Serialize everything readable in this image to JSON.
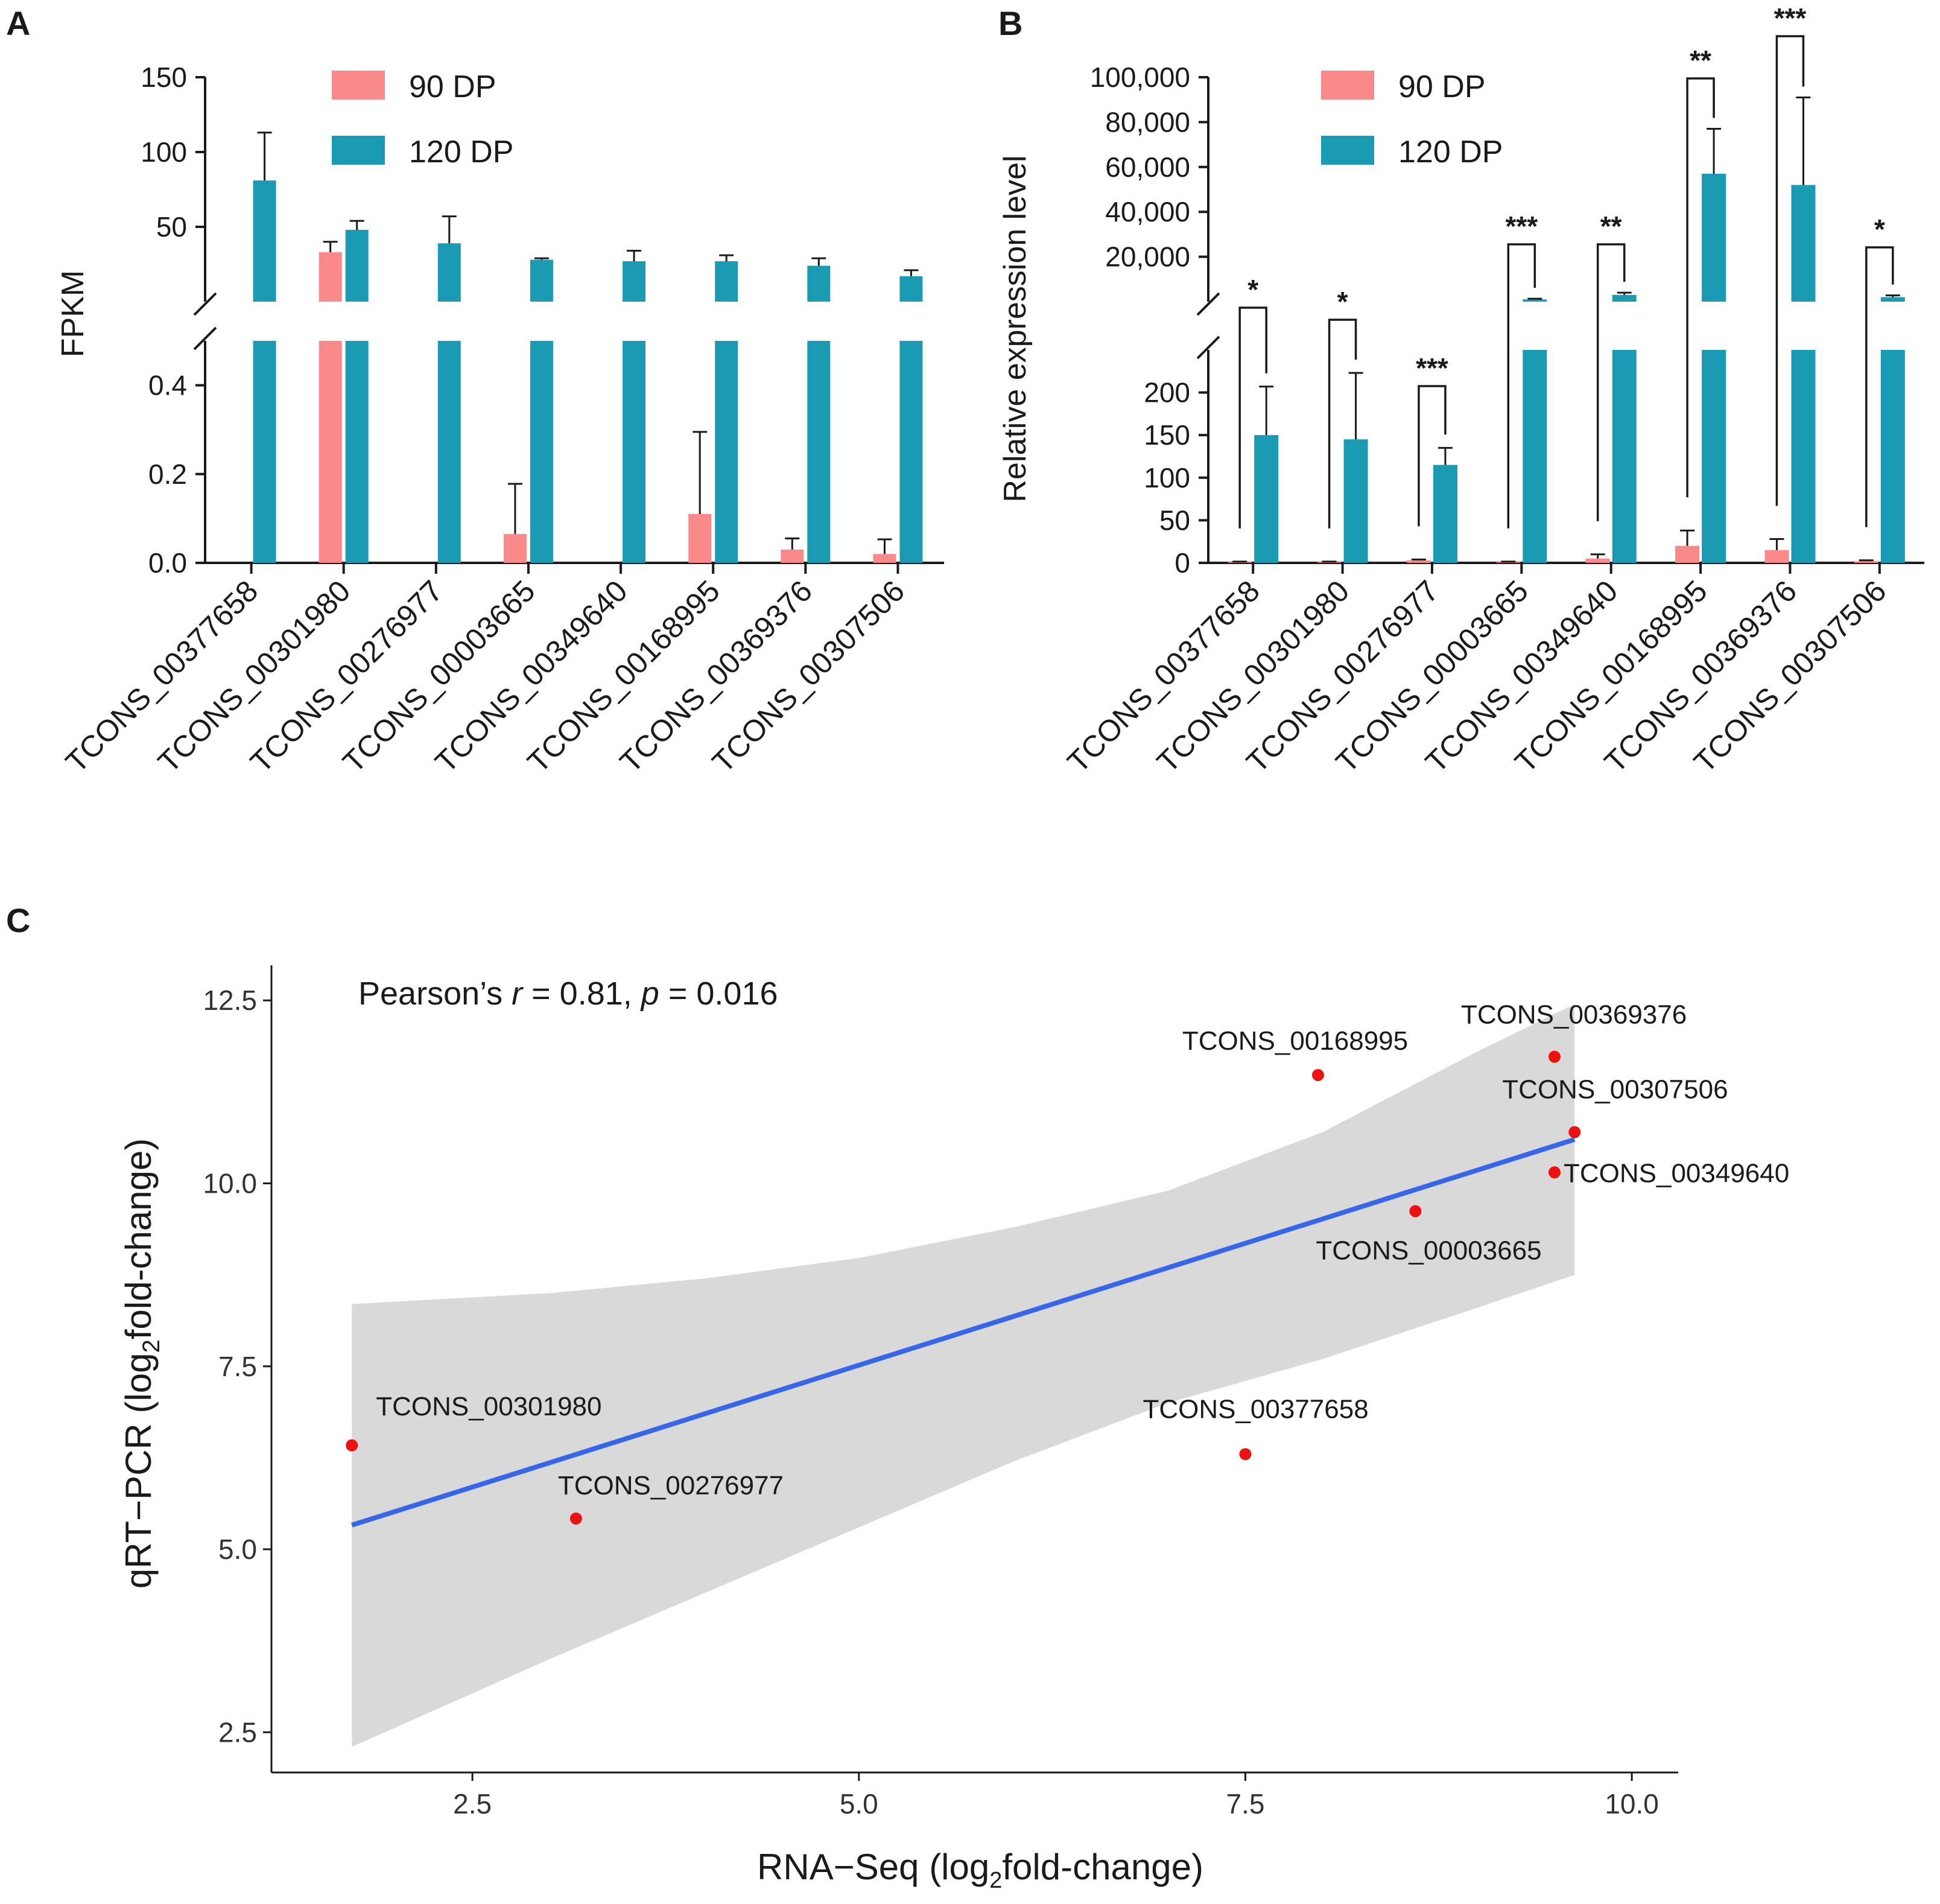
{
  "colors": {
    "dp90": "#fa8a8a",
    "dp120": "#1b9bb3",
    "fit_line": "#3766e8",
    "ci_band": "#d9d9d9",
    "points": "#ee1111",
    "axis": "#1a1a1a"
  },
  "chart_data": [
    {
      "panel": "A",
      "type": "bar",
      "ylabel": "FPKM",
      "y_axis_break": true,
      "lower_ticks": [
        "0.0",
        "0.2",
        "0.4"
      ],
      "upper_ticks": [
        "50",
        "100",
        "150"
      ],
      "lower_ylim": [
        0,
        0.5
      ],
      "upper_ylim": [
        0,
        150
      ],
      "legend": [
        "90 DP",
        "120 DP"
      ],
      "categories": [
        "TCONS_00377658",
        "TCONS_00301980",
        "TCONS_00276977",
        "TCONS_00003665",
        "TCONS_00349640",
        "TCONS_00168995",
        "TCONS_00369376",
        "TCONS_00307506"
      ],
      "series": [
        {
          "name": "90 DP",
          "values": [
            0,
            33,
            0,
            0.065,
            0,
            0.11,
            0.03,
            0.02
          ],
          "errors": [
            0,
            7,
            0,
            0.113,
            0,
            0.185,
            0.025,
            0.033
          ]
        },
        {
          "name": "120 DP",
          "values": [
            81,
            48,
            39,
            28,
            27,
            27,
            24,
            17
          ],
          "errors": [
            32,
            6,
            18,
            1,
            7,
            4,
            5,
            4
          ]
        }
      ]
    },
    {
      "panel": "B",
      "type": "bar",
      "ylabel": "Relative expression level",
      "y_axis_break": true,
      "lower_ticks": [
        "0",
        "50",
        "100",
        "150",
        "200"
      ],
      "upper_ticks": [
        "20,000",
        "40,000",
        "60,000",
        "80,000",
        "100,000"
      ],
      "lower_ylim": [
        0,
        250
      ],
      "upper_ylim": [
        0,
        100000
      ],
      "legend": [
        "90 DP",
        "120 DP"
      ],
      "categories": [
        "TCONS_00377658",
        "TCONS_00301980",
        "TCONS_00276977",
        "TCONS_00003665",
        "TCONS_00349640",
        "TCONS_00168995",
        "TCONS_00369376",
        "TCONS_00307506"
      ],
      "series": [
        {
          "name": "90 DP",
          "values": [
            1,
            1,
            3,
            1,
            5,
            20,
            15,
            2
          ],
          "errors": [
            0.5,
            0.5,
            1,
            0.5,
            5,
            18,
            13,
            1
          ]
        },
        {
          "name": "120 DP",
          "values": [
            150,
            145,
            115,
            1000,
            3000,
            57000,
            52000,
            2000
          ],
          "errors": [
            57,
            78,
            20,
            300,
            1000,
            20000,
            39000,
            800
          ]
        }
      ],
      "significance": [
        "*",
        "*",
        "***",
        "***",
        "**",
        "**",
        "***",
        "*"
      ]
    },
    {
      "panel": "C",
      "type": "scatter",
      "xlabel": "RNA−Seq (log₂fold-change)",
      "ylabel": "qRT−PCR (log₂fold-change)",
      "xlabel_parts": [
        "RNA−Seq (log",
        "2",
        "fold-change)"
      ],
      "ylabel_parts": [
        "qRT−PCR (log",
        "2",
        "fold-change)"
      ],
      "xlim": [
        1.2,
        10.3
      ],
      "ylim": [
        1.95,
        12.98
      ],
      "x_ticks": [
        "2.5",
        "5.0",
        "7.5",
        "10.0"
      ],
      "y_ticks": [
        "2.5",
        "5.0",
        "7.5",
        "10.0",
        "12.5"
      ],
      "annotation": [
        "Pearson’s ",
        "r",
        " = 0.81, ",
        "p",
        " = 0.016"
      ],
      "points": [
        {
          "label": "TCONS_00301980",
          "x": 1.72,
          "y": 6.42
        },
        {
          "label": "TCONS_00276977",
          "x": 3.17,
          "y": 5.42
        },
        {
          "label": "TCONS_00377658",
          "x": 7.5,
          "y": 6.3
        },
        {
          "label": "TCONS_00168995",
          "x": 7.97,
          "y": 11.48
        },
        {
          "label": "TCONS_00003665",
          "x": 8.6,
          "y": 9.62
        },
        {
          "label": "TCONS_00369376",
          "x": 9.5,
          "y": 11.73
        },
        {
          "label": "TCONS_00349640",
          "x": 9.5,
          "y": 10.15
        },
        {
          "label": "TCONS_00307506",
          "x": 9.63,
          "y": 10.7
        }
      ],
      "fit_line": {
        "x": [
          1.72,
          9.63
        ],
        "y": [
          5.33,
          10.6
        ]
      },
      "ci_band": {
        "x": [
          1.72,
          3.0,
          4.0,
          5.0,
          6.0,
          7.0,
          8.0,
          9.0,
          9.63
        ],
        "upper": [
          8.35,
          8.5,
          8.7,
          8.98,
          9.4,
          9.9,
          10.7,
          11.8,
          12.45
        ],
        "lower": [
          2.3,
          3.5,
          4.4,
          5.3,
          6.2,
          7.0,
          7.6,
          8.3,
          8.75
        ]
      }
    }
  ]
}
